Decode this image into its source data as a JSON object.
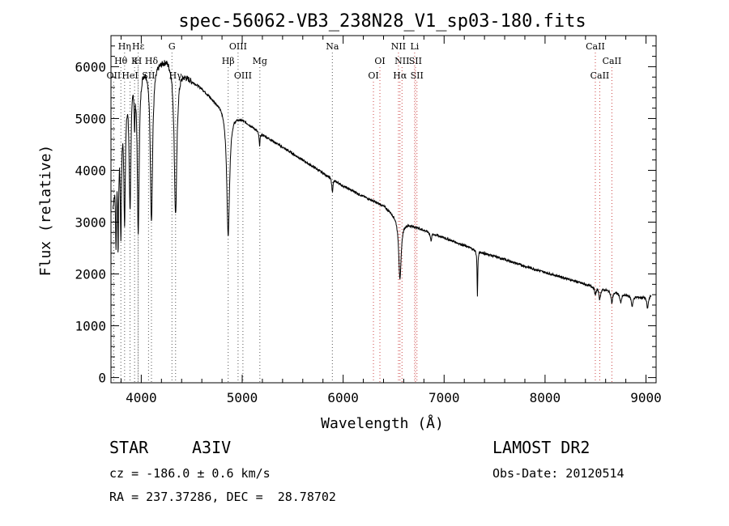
{
  "chart_data": {
    "type": "line",
    "title": "spec-56062-VB3_238N28_V1_sp03-180.fits",
    "xlabel": "Wavelength (Å)",
    "ylabel": "Flux (relative)",
    "xlim": [
      3700,
      9100
    ],
    "ylim": [
      -100,
      6600
    ],
    "x_ticks": [
      4000,
      5000,
      6000,
      7000,
      8000,
      9000
    ],
    "y_ticks": [
      0,
      1000,
      2000,
      3000,
      4000,
      5000,
      6000
    ],
    "continuum": [
      [
        3720,
        3400
      ],
      [
        3760,
        4600
      ],
      [
        3800,
        5200
      ],
      [
        3850,
        5700
      ],
      [
        3900,
        6000
      ],
      [
        3950,
        6150
      ],
      [
        4000,
        6100
      ],
      [
        4100,
        6100
      ],
      [
        4200,
        6150
      ],
      [
        4250,
        6200
      ],
      [
        4300,
        6150
      ],
      [
        4350,
        6050
      ],
      [
        4400,
        5950
      ],
      [
        4450,
        5850
      ],
      [
        4500,
        5750
      ],
      [
        4600,
        5600
      ],
      [
        4700,
        5400
      ],
      [
        4800,
        5250
      ],
      [
        4900,
        5100
      ],
      [
        5000,
        5000
      ],
      [
        5100,
        4850
      ],
      [
        5200,
        4700
      ],
      [
        5400,
        4450
      ],
      [
        5600,
        4200
      ],
      [
        5800,
        3950
      ],
      [
        6000,
        3700
      ],
      [
        6200,
        3500
      ],
      [
        6400,
        3320
      ],
      [
        6600,
        3000
      ],
      [
        6800,
        2850
      ],
      [
        7000,
        2700
      ],
      [
        7200,
        2550
      ],
      [
        7400,
        2400
      ],
      [
        7600,
        2280
      ],
      [
        7800,
        2150
      ],
      [
        8000,
        2030
      ],
      [
        8200,
        1920
      ],
      [
        8400,
        1800
      ],
      [
        8600,
        1700
      ],
      [
        8800,
        1600
      ],
      [
        8950,
        1550
      ],
      [
        9050,
        1600
      ]
    ],
    "absorption": [
      {
        "x": 3750,
        "depth": 1600,
        "width": 6
      },
      {
        "x": 3771,
        "depth": 2000,
        "width": 6
      },
      {
        "x": 3798,
        "depth": 2200,
        "width": 7
      },
      {
        "x": 3835,
        "depth": 2400,
        "width": 9
      },
      {
        "x": 3889,
        "depth": 2500,
        "width": 11
      },
      {
        "x": 3934,
        "depth": 900,
        "width": 5
      },
      {
        "x": 3970,
        "depth": 3200,
        "width": 12
      },
      {
        "x": 4101,
        "depth": 3000,
        "width": 14
      },
      {
        "x": 4340,
        "depth": 2900,
        "width": 16
      },
      {
        "x": 4861,
        "depth": 2400,
        "width": 17
      },
      {
        "x": 5172,
        "depth": 250,
        "width": 6
      },
      {
        "x": 5893,
        "depth": 250,
        "width": 6
      },
      {
        "x": 6563,
        "depth": 1150,
        "width": 15
      },
      {
        "x": 6870,
        "depth": 150,
        "width": 8
      },
      {
        "x": 7330,
        "depth": 900,
        "width": 4
      },
      {
        "x": 8498,
        "depth": 150,
        "width": 8
      },
      {
        "x": 8542,
        "depth": 220,
        "width": 9
      },
      {
        "x": 8662,
        "depth": 230,
        "width": 9
      },
      {
        "x": 8750,
        "depth": 180,
        "width": 10
      },
      {
        "x": 8863,
        "depth": 200,
        "width": 10
      },
      {
        "x": 9015,
        "depth": 250,
        "width": 10
      }
    ],
    "lines": [
      {
        "label": "Hη",
        "x": 3835,
        "color": "#555555",
        "row": 0
      },
      {
        "label": "Hθ",
        "x": 3798,
        "color": "#555555",
        "row": 1
      },
      {
        "label": "OII",
        "x": 3727,
        "color": "#555555",
        "row": 2
      },
      {
        "label": "Hε",
        "x": 3970,
        "color": "#555555",
        "row": 0
      },
      {
        "label": "K",
        "x": 3934,
        "color": "#555555",
        "row": 1
      },
      {
        "label": "HeI",
        "x": 3889,
        "color": "#555555",
        "row": 2
      },
      {
        "label": "H",
        "x": 3968,
        "color": "#555555",
        "row": 1
      },
      {
        "label": "SII",
        "x": 4072,
        "color": "#555555",
        "row": 2
      },
      {
        "label": "Hδ",
        "x": 4101,
        "color": "#555555",
        "row": 1
      },
      {
        "label": "G",
        "x": 4304,
        "color": "#555555",
        "row": 0
      },
      {
        "label": "Hγ",
        "x": 4340,
        "color": "#555555",
        "row": 2
      },
      {
        "label": "OIII",
        "x": 4959,
        "color": "#555555",
        "row": 0
      },
      {
        "label": "Hβ",
        "x": 4861,
        "color": "#555555",
        "row": 1
      },
      {
        "label": "OIII",
        "x": 5007,
        "color": "#555555",
        "row": 2
      },
      {
        "label": "Mg",
        "x": 5175,
        "color": "#555555",
        "row": 1
      },
      {
        "label": "Na",
        "x": 5893,
        "color": "#555555",
        "row": 0
      },
      {
        "label": "OI",
        "x": 6364,
        "color": "#cc4444",
        "row": 1
      },
      {
        "label": "OI",
        "x": 6300,
        "color": "#cc4444",
        "row": 2
      },
      {
        "label": "NII",
        "x": 6548,
        "color": "#cc4444",
        "row": 0
      },
      {
        "label": "NII",
        "x": 6583,
        "color": "#cc4444",
        "row": 1
      },
      {
        "label": "SII",
        "x": 6716,
        "color": "#cc4444",
        "row": 1
      },
      {
        "label": "Hα",
        "x": 6563,
        "color": "#cc4444",
        "row": 2
      },
      {
        "label": "SII",
        "x": 6731,
        "color": "#cc4444",
        "row": 2
      },
      {
        "label": "Li",
        "x": 6708,
        "color": "#cc4444",
        "row": 0
      },
      {
        "label": "CaII",
        "x": 8498,
        "color": "#cc4444",
        "row": 0
      },
      {
        "label": "CaII",
        "x": 8662,
        "color": "#cc4444",
        "row": 1
      },
      {
        "label": "CaII",
        "x": 8542,
        "color": "#cc4444",
        "row": 2
      }
    ]
  },
  "info": {
    "star_label": "STAR",
    "class": "A3IV",
    "survey": "LAMOST DR2",
    "cz": "cz = -186.0 ± 0.6 km/s",
    "obs_date": "Obs-Date: 20120514",
    "coords": "RA = 237.37286, DEC =  28.78702"
  }
}
